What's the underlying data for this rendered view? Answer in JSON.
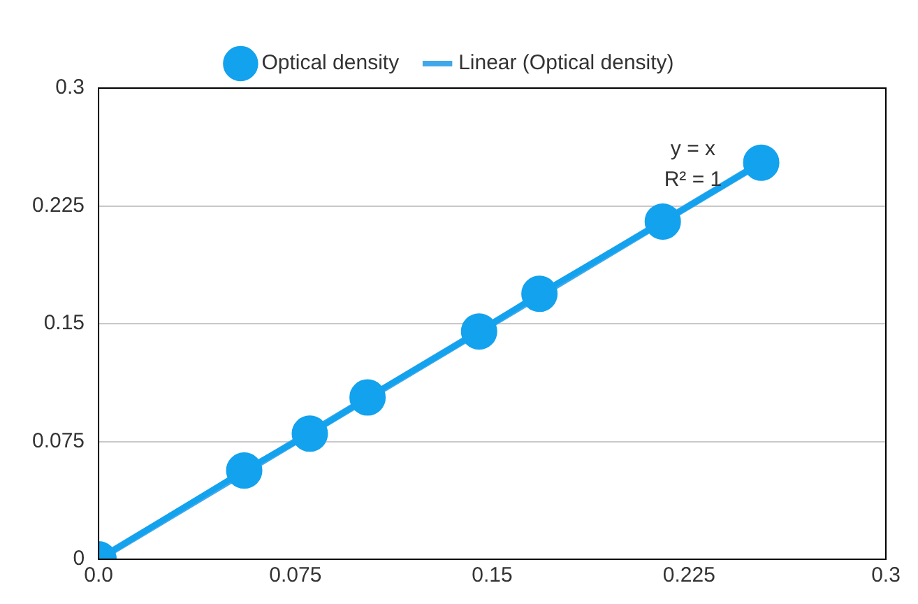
{
  "chart_data": {
    "type": "line",
    "series": [
      {
        "name": "Optical density",
        "color": "#12a2ee",
        "x": [
          0,
          0.0555,
          0.0805,
          0.1025,
          0.145,
          0.168,
          0.215,
          0.2525
        ],
        "values": [
          0,
          0.0565,
          0.08,
          0.103,
          0.145,
          0.169,
          0.215,
          0.2525
        ],
        "marker": "circle"
      },
      {
        "name": "Linear (Optical density)",
        "color": "#3fa8ea",
        "x": [
          0,
          0.2525
        ],
        "values": [
          0,
          0.2525
        ],
        "marker": "none"
      }
    ],
    "xlim": [
      0,
      0.3
    ],
    "xticks": [
      {
        "value": 0,
        "label": "0.0"
      },
      0.075,
      0.15,
      0.225,
      0.3
    ],
    "ylim": [
      0,
      0.3
    ],
    "yticks": [
      0,
      0.075,
      0.15,
      0.225,
      0.3
    ],
    "grid": "y",
    "legend": "top",
    "annotations": [
      "y = x",
      "R² = 1"
    ]
  }
}
